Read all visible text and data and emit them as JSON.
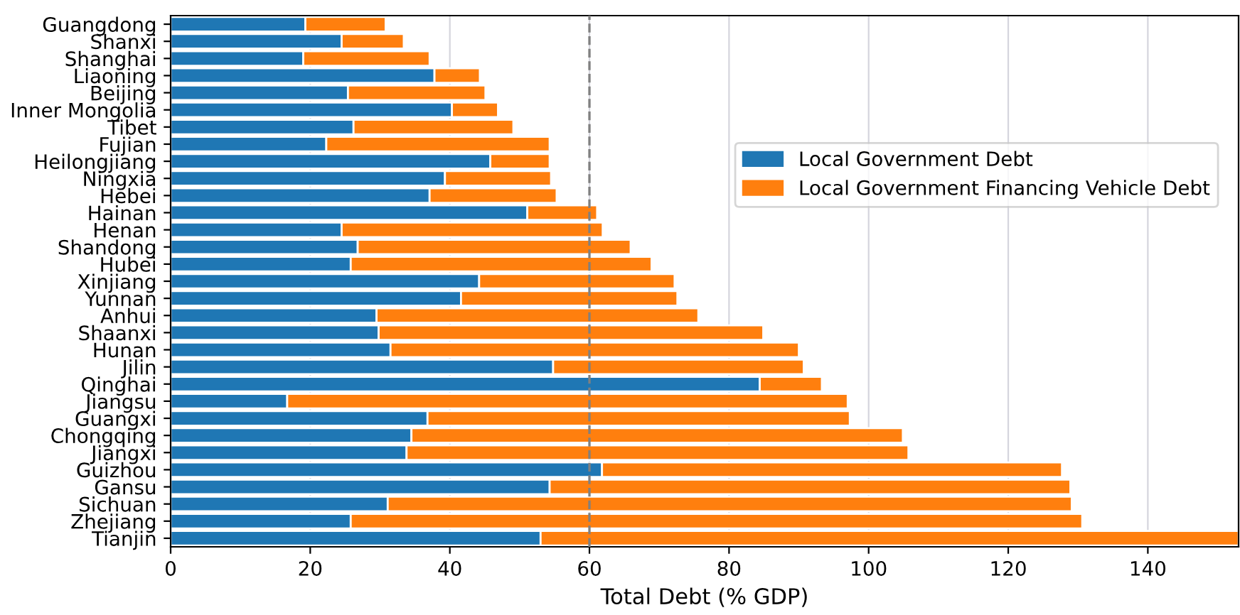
{
  "chart_data": {
    "type": "bar",
    "orientation": "horizontal",
    "stacked": true,
    "xlabel": "Total Debt (% GDP)",
    "categories": [
      "Guangdong",
      "Shanxi",
      "Shanghai",
      "Liaoning",
      "Beijing",
      "Inner Mongolia",
      "Tibet",
      "Fujian",
      "Heilongjiang",
      "Ningxia",
      "Hebei",
      "Hainan",
      "Henan",
      "Shandong",
      "Hubei",
      "Xinjiang",
      "Yunnan",
      "Anhui",
      "Shaanxi",
      "Hunan",
      "Jilin",
      "Qinghai",
      "Jiangsu",
      "Guangxi",
      "Chongqing",
      "Jiangxi",
      "Guizhou",
      "Gansu",
      "Sichuan",
      "Zhejiang",
      "Tianjin"
    ],
    "series": [
      {
        "name": "Local Government Debt",
        "color": "#1f77b4",
        "values": [
          19.3,
          24.5,
          19.0,
          37.8,
          25.4,
          40.3,
          26.2,
          22.3,
          45.8,
          39.3,
          37.1,
          51.1,
          24.5,
          26.8,
          25.8,
          44.2,
          41.6,
          29.5,
          29.8,
          31.5,
          54.8,
          84.4,
          16.7,
          36.8,
          34.5,
          33.8,
          61.8,
          54.3,
          31.1,
          25.8,
          53.0
        ]
      },
      {
        "name": "Local Government Financing Vehicle Debt",
        "color": "#ff7f0e",
        "values": [
          11.5,
          8.9,
          18.1,
          6.5,
          19.7,
          6.6,
          22.9,
          32.0,
          8.5,
          15.2,
          18.2,
          10.0,
          37.4,
          39.1,
          43.1,
          28.0,
          31.0,
          46.1,
          55.1,
          58.5,
          35.9,
          8.9,
          80.3,
          60.5,
          70.4,
          71.9,
          65.9,
          74.6,
          98.0,
          104.8,
          100.0
        ]
      }
    ],
    "xlim": [
      0,
      153
    ],
    "xticks": [
      0,
      20,
      40,
      60,
      80,
      100,
      120,
      140
    ],
    "ref_lines": [
      {
        "axis": "x",
        "value": 60,
        "color": "#808080",
        "line_style": "dashed"
      }
    ],
    "grid": "x",
    "legend": "right"
  }
}
